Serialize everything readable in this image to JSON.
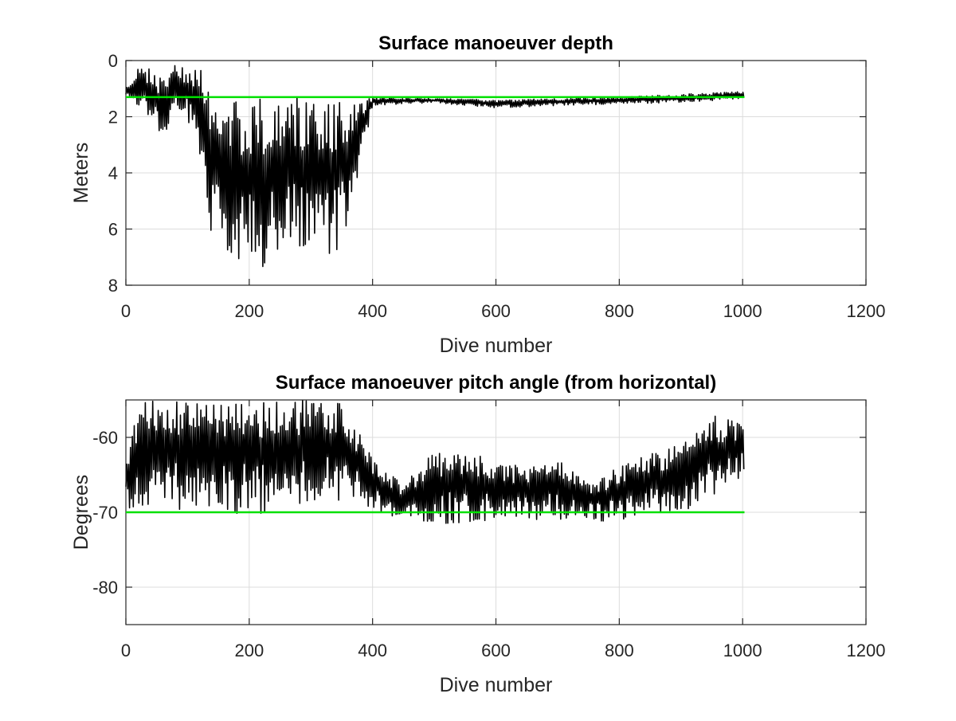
{
  "chart_data": [
    {
      "type": "line",
      "title": "Surface manoeuver depth",
      "xlabel": "Dive number",
      "ylabel": "Meters",
      "xlim": [
        0,
        1200
      ],
      "ylim": [
        0,
        8
      ],
      "y_reversed": true,
      "grid": true,
      "x_ticks": [
        "0",
        "200",
        "400",
        "600",
        "800",
        "1000",
        "1200"
      ],
      "y_ticks": [
        "0",
        "2",
        "4",
        "6",
        "8"
      ],
      "reference_line": {
        "value": 1.3,
        "x_range": [
          0,
          1003
        ],
        "color": "#00e000"
      },
      "series": [
        {
          "color": "#000000",
          "x_range": [
            0,
            1003
          ],
          "x_segments": [
            0,
            20,
            40,
            60,
            80,
            100,
            120,
            140,
            160,
            200,
            240,
            280,
            320,
            355,
            400,
            500,
            600,
            700,
            800,
            900,
            1003
          ],
          "upper_envelope": [
            1.0,
            0.2,
            0.3,
            0.6,
            0.0,
            0.1,
            0.2,
            1.3,
            1.3,
            1.3,
            1.3,
            1.3,
            1.3,
            1.3,
            1.3,
            1.35,
            1.4,
            1.35,
            1.3,
            1.2,
            1.1
          ],
          "lower_envelope": [
            1.3,
            1.6,
            2.2,
            3.0,
            2.0,
            2.3,
            3.4,
            6.5,
            7.0,
            7.5,
            7.2,
            6.8,
            7.3,
            6.5,
            1.6,
            1.5,
            1.7,
            1.6,
            1.55,
            1.5,
            1.35
          ]
        }
      ]
    },
    {
      "type": "line",
      "title": "Surface manoeuver pitch angle (from horizontal)",
      "xlabel": "Dive number",
      "ylabel": "Degrees",
      "xlim": [
        0,
        1200
      ],
      "ylim": [
        -85,
        -55
      ],
      "grid": true,
      "x_ticks": [
        "0",
        "200",
        "400",
        "600",
        "800",
        "1000",
        "1200"
      ],
      "y_ticks": [
        "-60",
        "-70",
        "-80"
      ],
      "reference_line": {
        "value": -70,
        "x_range": [
          0,
          1003
        ],
        "color": "#00e000"
      },
      "series": [
        {
          "color": "#000000",
          "x_range": [
            0,
            1003
          ],
          "x_segments": [
            0,
            20,
            50,
            100,
            150,
            200,
            250,
            300,
            355,
            400,
            450,
            500,
            550,
            600,
            650,
            700,
            750,
            800,
            850,
            900,
            950,
            1003
          ],
          "upper_envelope": [
            -62,
            -55,
            -55,
            -55,
            -55,
            -55,
            -55,
            -55,
            -55,
            -63,
            -66,
            -62,
            -62,
            -63,
            -64,
            -62,
            -66,
            -64,
            -62,
            -61,
            -57,
            -58
          ],
          "lower_envelope": [
            -69.5,
            -70,
            -69,
            -70,
            -70,
            -70.5,
            -70,
            -69,
            -68.5,
            -69.5,
            -71.5,
            -71.5,
            -71.5,
            -71,
            -71,
            -71,
            -71,
            -71.5,
            -70.5,
            -70,
            -68,
            -65
          ]
        }
      ]
    }
  ]
}
